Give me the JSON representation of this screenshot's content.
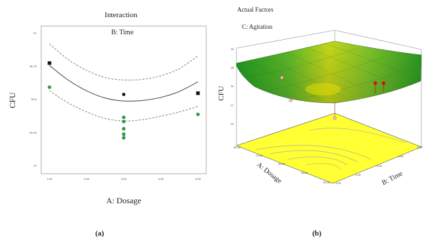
{
  "panel_a": {
    "title": "Interaction",
    "subtitle": "B: Time",
    "xlabel": "A: Dosage",
    "ylabel": "CFU",
    "caption": "(a)"
  },
  "panel_b": {
    "header": "Actual Factors",
    "factor": "C: Agitation",
    "zlabel": "CFU",
    "xlabel": "A: Dosage",
    "ylabel": "B: Time",
    "caption": "(b)"
  },
  "colors": {
    "fit_line": "#555555",
    "ci_line": "#777777",
    "point_black": "#111111",
    "point_green": "#2e9a4a",
    "surface_low": "#e03020",
    "surface_mid": "#f2e600",
    "surface_high": "#1a9a1a",
    "contour_floor": "#ffff33",
    "design_point_red": "#cc1111"
  },
  "chart_data": [
    {
      "type": "line",
      "title": "Interaction",
      "subtitle": "B: Time",
      "xlabel": "A: Dosage",
      "ylabel": "CFU",
      "xlim": [
        1.0,
        5.0
      ],
      "ylim": [
        19,
        41
      ],
      "x_ticks": [
        "1.00",
        "2.00",
        "3.00",
        "4.00",
        "5.00"
      ],
      "y_ticks": [
        "41",
        "36.75",
        "30.5",
        "25.25",
        "19"
      ],
      "fit": {
        "x": [
          1,
          1.5,
          2,
          2.5,
          3,
          3.5,
          4,
          4.5,
          5
        ],
        "y": [
          35.6,
          33.2,
          31.4,
          30.2,
          29.7,
          29.8,
          30.3,
          31.3,
          32.9
        ]
      },
      "ci_upper": {
        "x": [
          1,
          1.5,
          2,
          2.5,
          3,
          3.5,
          4,
          4.5,
          5
        ],
        "y": [
          39.2,
          36.6,
          34.8,
          33.6,
          33.2,
          33.3,
          33.9,
          35.1,
          37.2
        ]
      },
      "ci_lower": {
        "x": [
          1,
          1.5,
          2,
          2.5,
          3,
          3.5,
          4,
          4.5,
          5
        ],
        "y": [
          31.4,
          29.4,
          27.9,
          26.8,
          26.4,
          26.6,
          27.2,
          27.9,
          28.8
        ]
      },
      "points_black": [
        {
          "x": 1.0,
          "y": 36.0
        },
        {
          "x": 3.0,
          "y": 30.8
        },
        {
          "x": 5.0,
          "y": 31.0
        }
      ],
      "points_green": [
        {
          "x": 1.0,
          "y": 32.0
        },
        {
          "x": 3.0,
          "y": 27.0
        },
        {
          "x": 3.0,
          "y": 26.3
        },
        {
          "x": 3.0,
          "y": 25.1
        },
        {
          "x": 3.0,
          "y": 24.2
        },
        {
          "x": 3.0,
          "y": 23.6
        },
        {
          "x": 5.0,
          "y": 27.5
        }
      ],
      "grid": false
    },
    {
      "type": "surface",
      "title": "",
      "zlabel": "CFU",
      "xlabel": "A: Dosage",
      "ylabel": "B: Time",
      "zlim": [
        23,
        39
      ],
      "z_ticks": [
        "39",
        "35",
        "31",
        "27",
        "23"
      ],
      "x_ticks": [
        "80.00",
        "70.00",
        "60.00",
        "40.00",
        "30.00"
      ],
      "y_ticks": [
        "1.00",
        "2.00",
        "3.00",
        "4.00",
        "5.00"
      ],
      "design_points": [
        {
          "x": 80,
          "y": 1,
          "z": 31
        },
        {
          "x": 30,
          "y": 5,
          "z": 31
        },
        {
          "x": 30,
          "y": 4.5,
          "z": 31
        },
        {
          "x": 55,
          "y": 3,
          "z": 28
        }
      ]
    }
  ]
}
